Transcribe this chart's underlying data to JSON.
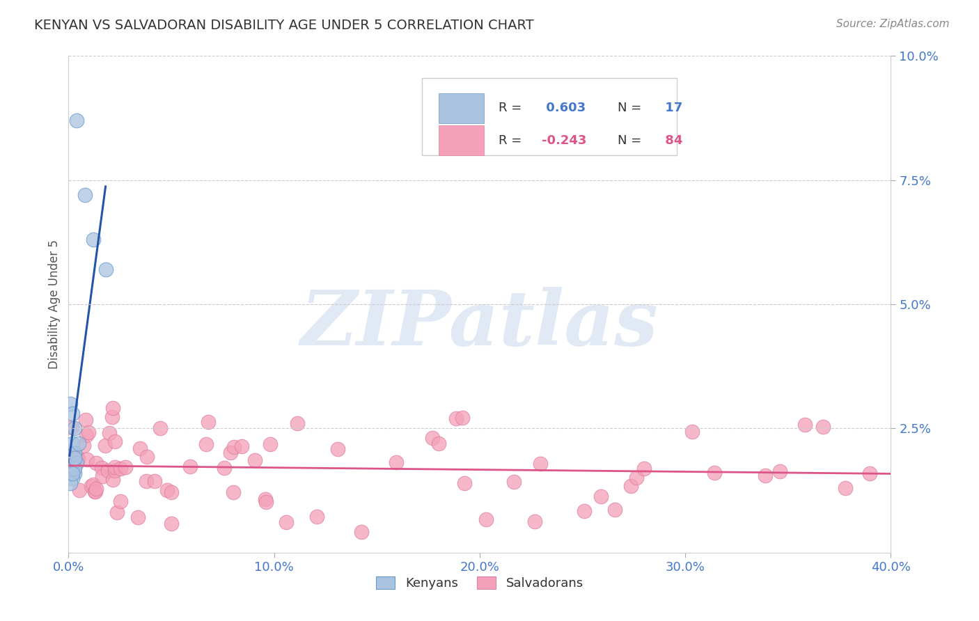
{
  "title": "KENYAN VS SALVADORAN DISABILITY AGE UNDER 5 CORRELATION CHART",
  "source": "Source: ZipAtlas.com",
  "ylabel": "Disability Age Under 5",
  "xlim": [
    0.0,
    0.4
  ],
  "ylim": [
    -0.005,
    0.105
  ],
  "plot_ylim": [
    0.0,
    0.1
  ],
  "xticks": [
    0.0,
    0.1,
    0.2,
    0.3,
    0.4
  ],
  "yticks": [
    0.025,
    0.05,
    0.075,
    0.1
  ],
  "ytick_labels": [
    "2.5%",
    "5.0%",
    "7.5%",
    "10.0%"
  ],
  "xtick_labels": [
    "0.0%",
    "10.0%",
    "20.0%",
    "30.0%",
    "40.0%"
  ],
  "kenyan_R": 0.603,
  "kenyan_N": 17,
  "salvadoran_R": -0.243,
  "salvadoran_N": 84,
  "kenyan_color": "#aac4e0",
  "kenyan_edge_color": "#6699cc",
  "kenyan_line_color": "#2255aa",
  "salvadoran_color": "#f4a0b8",
  "salvadoran_edge_color": "#e080a0",
  "salvadoran_line_color": "#dd5588",
  "background_color": "#ffffff",
  "grid_color": "#cccccc",
  "watermark": "ZIPatlas",
  "title_color": "#333333",
  "source_color": "#888888",
  "tick_color": "#4477cc",
  "ylabel_color": "#555555"
}
